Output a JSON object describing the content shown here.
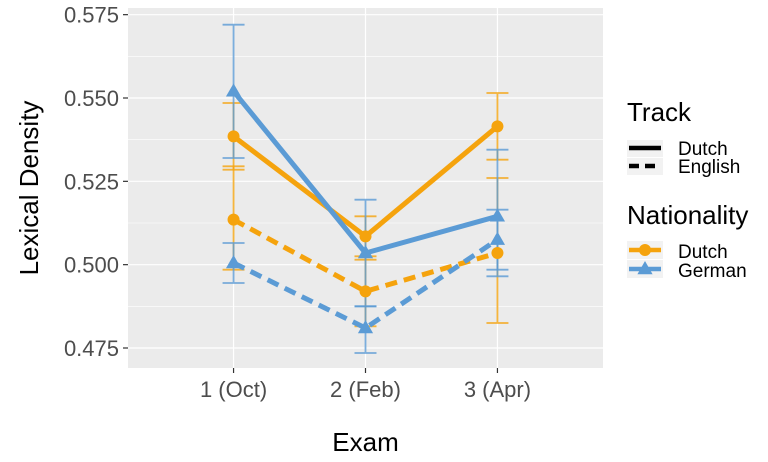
{
  "chart_data": {
    "type": "line",
    "xlabel": "Exam",
    "ylabel": "Lexical Density",
    "categories": [
      "1 (Oct)",
      "2 (Feb)",
      "3 (Apr)"
    ],
    "ylim": [
      0.469,
      0.577
    ],
    "yticks": [
      0.475,
      0.5,
      0.525,
      0.55,
      0.575
    ],
    "ytick_labels": [
      "0.475",
      "0.500",
      "0.525",
      "0.550",
      "0.575"
    ],
    "grid": true,
    "legend": {
      "placement": "right",
      "track": {
        "title": "Track",
        "items": [
          "Dutch",
          "English"
        ]
      },
      "nationality": {
        "title": "Nationality",
        "items": [
          "Dutch",
          "German"
        ]
      }
    },
    "colors": {
      "Dutch": "#f5a30d",
      "German": "#5b9bd5"
    },
    "series": [
      {
        "nationality": "Dutch",
        "track": "Dutch",
        "marker": "circle",
        "linestyle": "solid",
        "values": [
          0.5385,
          0.5085,
          0.5415
        ],
        "err_low": [
          0.5285,
          0.5015,
          0.5315
        ],
        "err_high": [
          0.5485,
          0.5145,
          0.5515
        ]
      },
      {
        "nationality": "Dutch",
        "track": "English",
        "marker": "circle",
        "linestyle": "dashed",
        "values": [
          0.5135,
          0.492,
          0.5035
        ],
        "err_low": [
          0.4985,
          0.4815,
          0.4825
        ],
        "err_high": [
          0.5295,
          0.5025,
          0.526
        ]
      },
      {
        "nationality": "German",
        "track": "Dutch",
        "marker": "triangle",
        "linestyle": "solid",
        "values": [
          0.552,
          0.5035,
          0.5145
        ],
        "err_low": [
          0.532,
          0.4875,
          0.4965
        ],
        "err_high": [
          0.572,
          0.5195,
          0.5345
        ]
      },
      {
        "nationality": "German",
        "track": "English",
        "marker": "triangle",
        "linestyle": "dashed",
        "values": [
          0.5005,
          0.481,
          0.5075
        ],
        "err_low": [
          0.4945,
          0.4735,
          0.4985
        ],
        "err_high": [
          0.5065,
          0.4875,
          0.5165
        ]
      }
    ]
  }
}
